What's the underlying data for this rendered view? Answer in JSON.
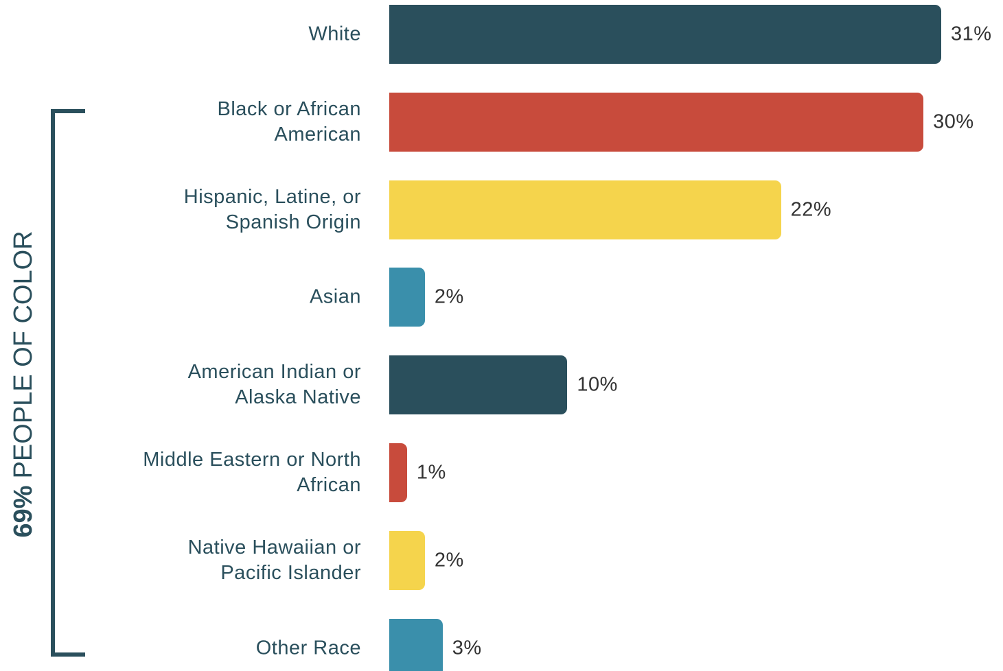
{
  "chart_data": {
    "type": "bar",
    "orientation": "horizontal",
    "categories": [
      "White",
      "Black or African\nAmerican",
      "Hispanic, Latine, or\nSpanish Origin",
      "Asian",
      "American Indian or\nAlaska Native",
      "Middle Eastern or North\nAfrican",
      "Native Hawaiian or\nPacific Islander",
      "Other Race"
    ],
    "values": [
      31,
      30,
      22,
      2,
      10,
      1,
      2,
      3
    ],
    "value_labels": [
      "31%",
      "30%",
      "22%",
      "2%",
      "10%",
      "1%",
      "2%",
      "3%"
    ],
    "colors": [
      "#2a4f5c",
      "#c84b3c",
      "#f5d44c",
      "#3a8fab",
      "#2a4f5c",
      "#c84b3c",
      "#f5d44c",
      "#3a8fab"
    ],
    "annotation": {
      "emphasis": "69%",
      "text": "PEOPLE OF COLOR"
    }
  }
}
